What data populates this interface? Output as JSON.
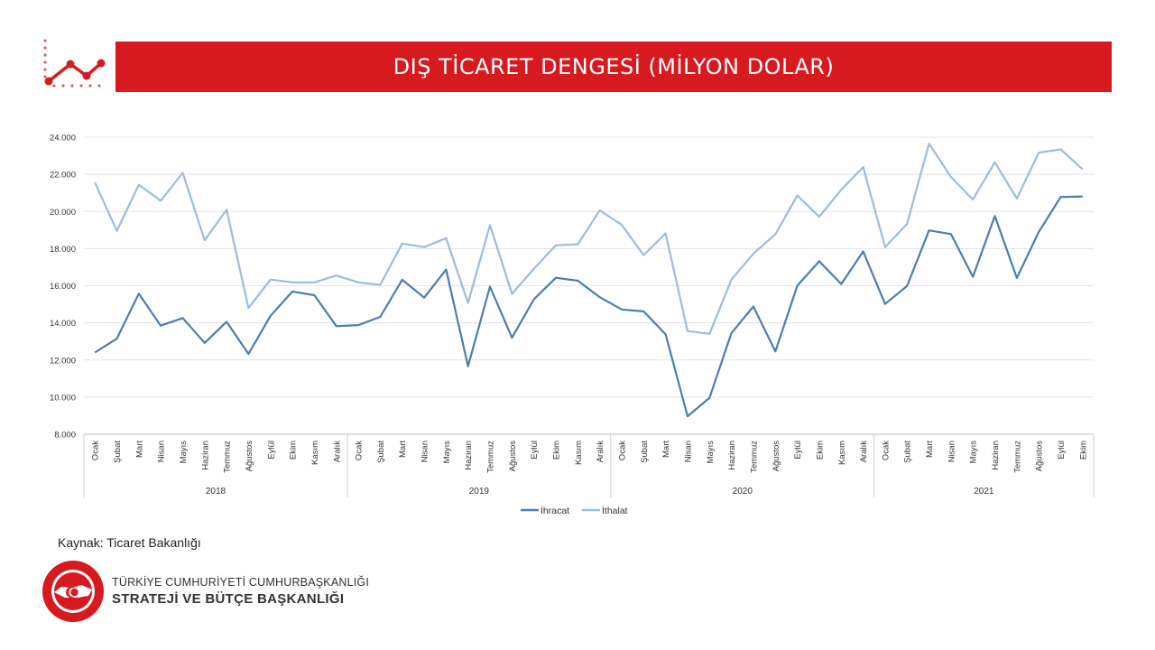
{
  "header": {
    "title": "DIŞ TİCARET DENGESİ (MİLYON DOLAR)",
    "icon": "trend-line-icon",
    "accent_color": "#d71920"
  },
  "chart_data": {
    "type": "line",
    "title": "",
    "xlabel": "",
    "ylabel": "",
    "ylim": [
      8000,
      24000
    ],
    "yticks": [
      "8.000",
      "10.000",
      "12.000",
      "14.000",
      "16.000",
      "18.000",
      "20.000",
      "22.000",
      "24.000"
    ],
    "y_tick_values": [
      8000,
      10000,
      12000,
      14000,
      16000,
      18000,
      20000,
      22000,
      24000
    ],
    "grid": true,
    "legend_position": "bottom",
    "years": [
      {
        "label": "2018",
        "months": 12
      },
      {
        "label": "2019",
        "months": 12
      },
      {
        "label": "2020",
        "months": 12
      },
      {
        "label": "2021",
        "months": 10
      }
    ],
    "categories": [
      "Ocak",
      "Şubat",
      "Mart",
      "Nisan",
      "Mayıs",
      "Haziran",
      "Temmuz",
      "Ağustos",
      "Eylül",
      "Ekim",
      "Kasım",
      "Aralık",
      "Ocak",
      "Şubat",
      "Mart",
      "Nisan",
      "Mayıs",
      "Haziran",
      "Temmuz",
      "Ağustos",
      "Eylül",
      "Ekim",
      "Kasım",
      "Aralık",
      "Ocak",
      "Şubat",
      "Mart",
      "Nisan",
      "Mayıs",
      "Haziran",
      "Temmuz",
      "Ağustos",
      "Eylül",
      "Ekim",
      "Kasım",
      "Aralık",
      "Ocak",
      "Şubat",
      "Mart",
      "Nisan",
      "Mayıs",
      "Haziran",
      "Temmuz",
      "Ağustos",
      "Eylül",
      "Ekim"
    ],
    "series": [
      {
        "name": "İhracat",
        "color": "#4a7eb0",
        "values": [
          12400,
          13150,
          15570,
          13850,
          14260,
          12920,
          14060,
          12330,
          14380,
          15690,
          15490,
          13820,
          13880,
          14320,
          16320,
          15360,
          16870,
          11660,
          15950,
          13200,
          15270,
          16430,
          16270,
          15380,
          14720,
          14620,
          13390,
          8970,
          9960,
          13450,
          14880,
          12460,
          16000,
          17320,
          16090,
          17850,
          15020,
          15980,
          18980,
          18780,
          16480,
          19760,
          16420,
          18900,
          20780,
          20810
        ]
      },
      {
        "name": "İthalat",
        "color": "#9dbcdd",
        "values": [
          21560,
          18950,
          21440,
          20580,
          22080,
          18450,
          20090,
          14800,
          16330,
          16180,
          16180,
          16550,
          16180,
          16050,
          18270,
          18080,
          18560,
          15070,
          19270,
          15560,
          16920,
          18180,
          18230,
          20060,
          19280,
          17650,
          18820,
          13560,
          13410,
          16330,
          17720,
          18770,
          20860,
          19720,
          21170,
          22390,
          18080,
          19330,
          23650,
          21860,
          20640,
          22650,
          20700,
          23170,
          23350,
          22270
        ]
      }
    ]
  },
  "footer": {
    "source": "Kaynak: Ticaret Bakanlığı",
    "org_line1": "TÜRKİYE CUMHURİYETİ CUMHURBAŞKANLIĞI",
    "org_line2": "STRATEJİ VE BÜTÇE BAŞKANLIĞI",
    "seal_icon": "presidency-seal-icon"
  }
}
